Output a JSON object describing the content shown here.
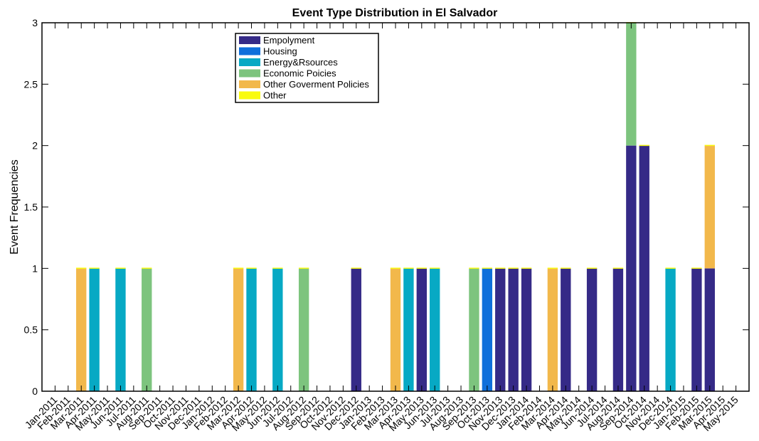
{
  "chart_data": {
    "type": "bar",
    "stacked": true,
    "title": "Event Type Distribution in El Salvador",
    "xlabel": "",
    "ylabel": "Event Frequencies",
    "ylim": [
      0,
      3
    ],
    "yticks": [
      "0",
      "0.5",
      "1",
      "1.5",
      "2",
      "2.5",
      "3"
    ],
    "grid": false,
    "legend_position": "top-left",
    "categories": [
      "Jan-2011",
      "Feb-2011",
      "Mar-2011",
      "Apr-2011",
      "May-2011",
      "Jun-2011",
      "Jul-2011",
      "Aug-2011",
      "Sep-2011",
      "Oct-2011",
      "Nov-2011",
      "Dec-2011",
      "Jan-2012",
      "Feb-2012",
      "Mar-2012",
      "Apr-2012",
      "May-2012",
      "Jun-2012",
      "Jul-2012",
      "Aug-2012",
      "Sep-2012",
      "Oct-2012",
      "Nov-2012",
      "Dec-2012",
      "Jan-2013",
      "Feb-2013",
      "Mar-2013",
      "Apr-2013",
      "May-2013",
      "Jun-2013",
      "Jul-2013",
      "Aug-2013",
      "Sep-2013",
      "Oct-2013",
      "Nov-2013",
      "Dec-2013",
      "Jan-2014",
      "Feb-2014",
      "Mar-2014",
      "Apr-2014",
      "May-2014",
      "Jun-2014",
      "Jul-2014",
      "Aug-2014",
      "Sep-2014",
      "Oct-2014",
      "Nov-2014",
      "Dec-2014",
      "Jan-2015",
      "Feb-2015",
      "Mar-2015",
      "Apr-2015",
      "May-2015"
    ],
    "series": [
      {
        "name": "Empolyment",
        "color": "#352a87",
        "values": [
          0,
          0,
          0,
          0,
          0,
          0,
          0,
          0,
          0,
          0,
          0,
          0,
          0,
          0,
          0,
          0,
          0,
          0,
          0,
          0,
          0,
          0,
          0,
          1,
          0,
          0,
          0,
          0,
          1,
          0,
          0,
          0,
          0,
          0,
          1,
          1,
          1,
          0,
          0,
          1,
          0,
          1,
          0,
          1,
          2,
          2,
          0,
          0,
          0,
          1,
          1,
          0,
          0
        ]
      },
      {
        "name": "Housing",
        "color": "#0f6fdb",
        "values": [
          0,
          0,
          0,
          0,
          0,
          0,
          0,
          0,
          0,
          0,
          0,
          0,
          0,
          0,
          0,
          0,
          0,
          0,
          0,
          0,
          0,
          0,
          0,
          0,
          0,
          0,
          0,
          0,
          0,
          0,
          0,
          0,
          0,
          1,
          0,
          0,
          0,
          0,
          0,
          0,
          0,
          0,
          0,
          0,
          0,
          0,
          0,
          0,
          0,
          0,
          0,
          0,
          0
        ]
      },
      {
        "name": "Energy&Rsources",
        "color": "#07a9c4",
        "values": [
          0,
          0,
          0,
          1,
          0,
          1,
          0,
          0,
          0,
          0,
          0,
          0,
          0,
          0,
          0,
          1,
          0,
          1,
          0,
          0,
          0,
          0,
          0,
          0,
          0,
          0,
          0,
          1,
          0,
          1,
          0,
          0,
          0,
          0,
          0,
          0,
          0,
          0,
          0,
          0,
          0,
          0,
          0,
          0,
          0,
          0,
          0,
          1,
          0,
          0,
          0,
          0,
          0
        ]
      },
      {
        "name": "Economic Poicies",
        "color": "#7dc47e",
        "values": [
          0,
          0,
          0,
          0,
          0,
          0,
          0,
          1,
          0,
          0,
          0,
          0,
          0,
          0,
          0,
          0,
          0,
          0,
          0,
          1,
          0,
          0,
          0,
          0,
          0,
          0,
          0,
          0,
          0,
          0,
          0,
          0,
          1,
          0,
          0,
          0,
          0,
          0,
          0,
          0,
          0,
          0,
          0,
          0,
          1,
          0,
          0,
          0,
          0,
          0,
          0,
          0,
          0
        ]
      },
      {
        "name": "Other Goverment Policies",
        "color": "#f2b84b",
        "values": [
          0,
          0,
          1,
          0,
          0,
          0,
          0,
          0,
          0,
          0,
          0,
          0,
          0,
          0,
          1,
          0,
          0,
          0,
          0,
          0,
          0,
          0,
          0,
          0,
          0,
          0,
          1,
          0,
          0,
          0,
          0,
          0,
          0,
          0,
          0,
          0,
          0,
          0,
          1,
          0,
          0,
          0,
          0,
          0,
          0,
          0,
          0,
          0,
          0,
          0,
          1,
          0,
          0
        ]
      },
      {
        "name": "Other",
        "color": "#f9fb0e",
        "values": [
          0,
          0,
          0,
          0,
          0,
          0,
          0,
          0,
          0,
          0,
          0,
          0,
          0,
          0,
          0,
          0,
          0,
          0,
          0,
          0,
          0,
          0,
          0,
          0,
          0,
          0,
          0,
          0,
          0,
          0,
          0,
          0,
          0,
          0,
          0,
          0,
          0,
          0,
          0,
          0,
          0,
          0,
          0,
          0,
          0,
          0,
          0,
          0,
          0,
          0,
          0,
          0,
          0
        ]
      }
    ]
  }
}
